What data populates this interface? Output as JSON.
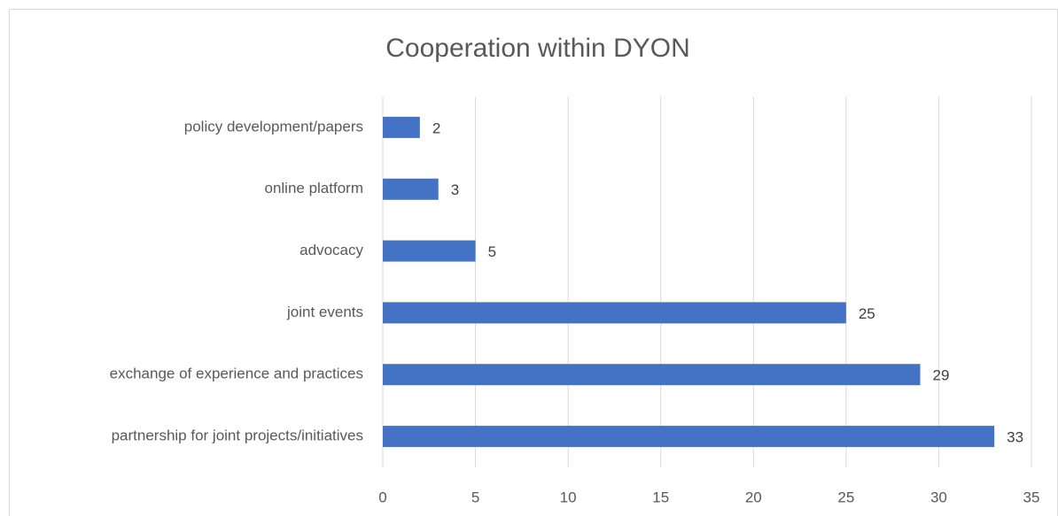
{
  "chart_data": {
    "type": "bar",
    "orientation": "horizontal",
    "title": "Cooperation within DYON",
    "categories": [
      "policy development/papers",
      "online platform",
      "advocacy",
      "joint events",
      "exchange of experience and practices",
      "partnership for joint projects/initiatives"
    ],
    "values": [
      2,
      3,
      5,
      25,
      29,
      33
    ],
    "color": "#4472c4",
    "xlim": [
      0,
      35
    ],
    "xticks": [
      0,
      5,
      10,
      15,
      20,
      25,
      30,
      35
    ],
    "grid": true
  }
}
